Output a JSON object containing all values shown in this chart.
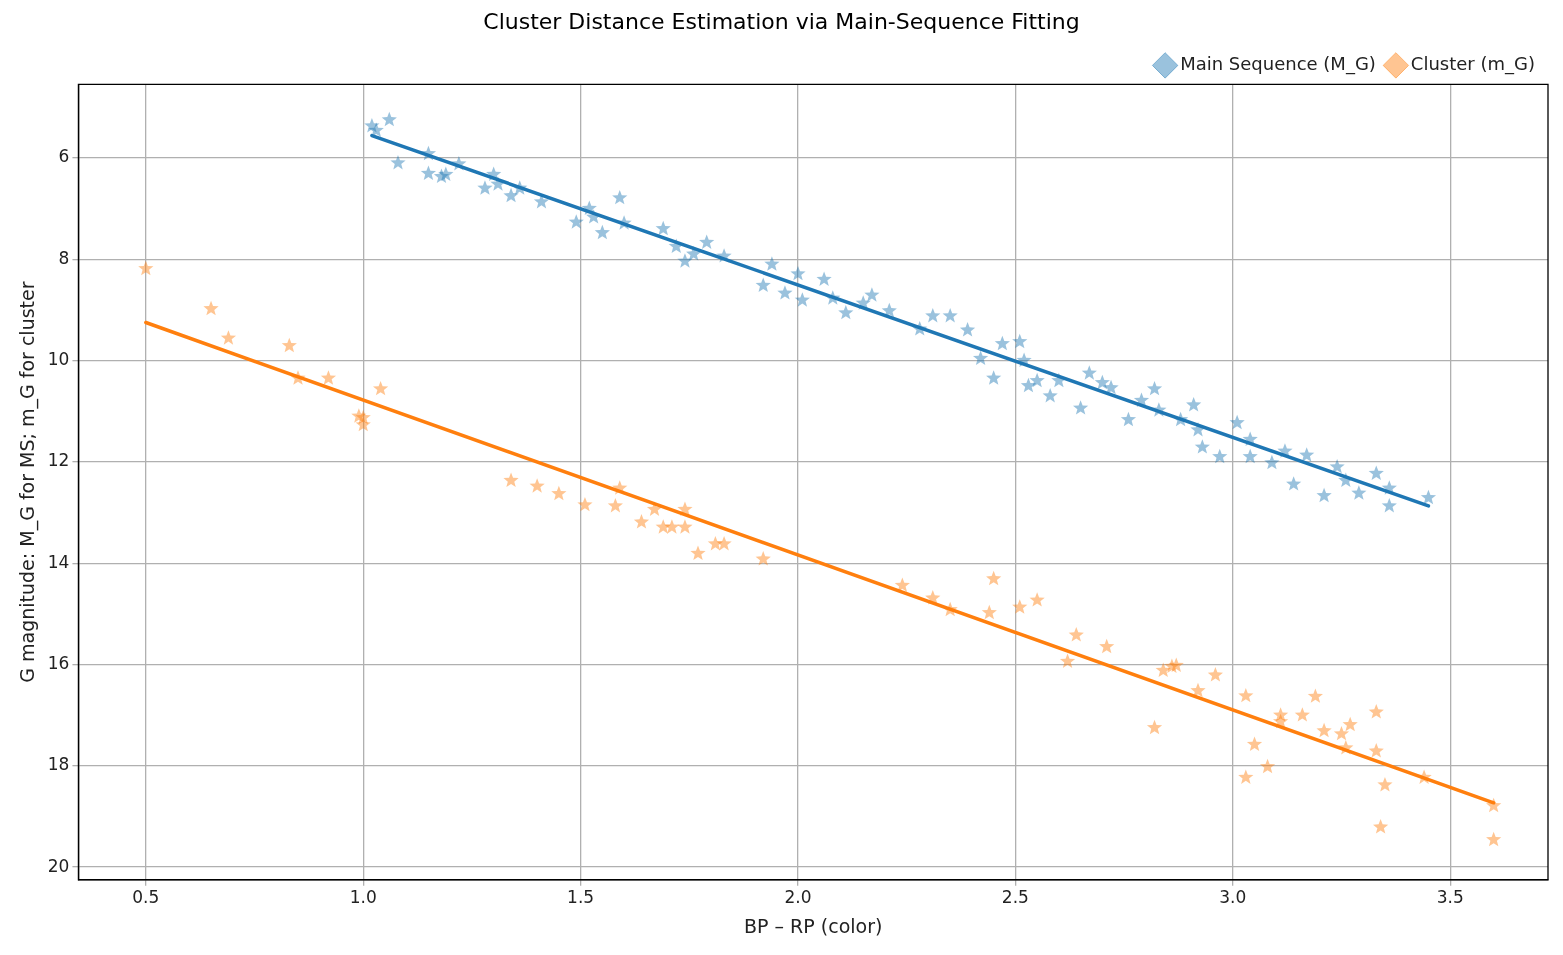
{
  "chart_data": {
    "type": "scatter",
    "title": "Cluster Distance Estimation via Main-Sequence Fitting",
    "xlabel": "BP – RP (color)",
    "ylabel": "G magnitude: M_G for MS; m_G for cluster",
    "xlim": [
      0.345,
      3.725
    ],
    "xticks": [
      0.5,
      {
        "value": 1,
        "label": "1.0"
      },
      1.5,
      {
        "value": 2,
        "label": "2.0"
      },
      2.5,
      {
        "value": 3,
        "label": "3.0"
      },
      3.5
    ],
    "ylim": [
      20.25,
      4.55
    ],
    "yticks": [
      6,
      8,
      10,
      12,
      14,
      16,
      18,
      20
    ],
    "grid": true,
    "legend": "top right",
    "marker": "star",
    "series": [
      {
        "name": "Main Sequence (M_G)",
        "color": "#1f77b4",
        "x": [
          1.03,
          1.06,
          1.02,
          1.08,
          1.15,
          1.15,
          1.18,
          1.19,
          1.22,
          1.28,
          1.3,
          1.31,
          1.34,
          1.36,
          1.41,
          1.49,
          1.52,
          1.53,
          1.55,
          1.59,
          1.6,
          1.69,
          1.72,
          1.74,
          1.76,
          1.79,
          1.83,
          1.92,
          1.94,
          1.97,
          2.0,
          2.01,
          2.06,
          2.08,
          2.11,
          2.15,
          2.17,
          2.21,
          2.28,
          2.31,
          2.35,
          2.39,
          2.42,
          2.45,
          2.47,
          2.51,
          2.52,
          2.53,
          2.55,
          2.58,
          2.6,
          2.65,
          2.67,
          2.7,
          2.72,
          2.76,
          2.79,
          2.82,
          2.83,
          2.88,
          2.91,
          2.92,
          2.93,
          2.97,
          3.01,
          3.04,
          3.04,
          3.09,
          3.12,
          3.14,
          3.17,
          3.21,
          3.24,
          3.26,
          3.29,
          3.33,
          3.36,
          3.36,
          3.45
        ],
        "values": [
          5.46,
          5.25,
          5.37,
          6.1,
          5.92,
          6.31,
          6.37,
          6.33,
          6.12,
          6.6,
          6.33,
          6.52,
          6.75,
          6.6,
          6.87,
          7.27,
          7.0,
          7.17,
          7.48,
          6.79,
          7.29,
          7.4,
          7.75,
          8.04,
          7.9,
          7.67,
          7.94,
          8.52,
          8.1,
          8.67,
          8.29,
          8.81,
          8.4,
          8.77,
          9.06,
          8.87,
          8.71,
          9.02,
          9.38,
          9.12,
          9.12,
          9.4,
          9.96,
          10.35,
          9.67,
          9.63,
          10.0,
          10.5,
          10.4,
          10.7,
          10.4,
          10.94,
          10.25,
          10.44,
          10.54,
          11.17,
          10.79,
          10.56,
          10.98,
          11.17,
          10.88,
          11.37,
          11.71,
          11.9,
          11.23,
          11.56,
          11.9,
          12.02,
          11.79,
          12.44,
          11.87,
          12.67,
          12.1,
          12.37,
          12.62,
          12.23,
          12.87,
          12.52,
          12.71
        ]
      },
      {
        "name": "Cluster (m_G)",
        "color": "#ff7f0e",
        "x": [
          0.5,
          0.65,
          0.69,
          0.83,
          0.85,
          0.92,
          0.99,
          1.0,
          1.0,
          1.04,
          1.34,
          1.4,
          1.45,
          1.51,
          1.58,
          1.59,
          1.64,
          1.67,
          1.69,
          1.71,
          1.74,
          1.74,
          1.77,
          1.81,
          1.83,
          1.92,
          2.24,
          2.31,
          2.35,
          2.45,
          2.44,
          2.51,
          2.55,
          2.62,
          2.64,
          2.71,
          2.82,
          2.84,
          2.86,
          2.87,
          2.92,
          2.96,
          3.03,
          3.03,
          3.05,
          3.08,
          3.11,
          3.11,
          3.16,
          3.19,
          3.21,
          3.25,
          3.26,
          3.27,
          3.33,
          3.33,
          3.34,
          3.35,
          3.44,
          3.6,
          3.6
        ],
        "values": [
          8.19,
          8.98,
          9.56,
          9.71,
          10.35,
          10.35,
          11.1,
          11.13,
          11.27,
          10.56,
          12.37,
          12.48,
          12.63,
          12.85,
          12.87,
          12.52,
          13.19,
          12.94,
          13.29,
          13.29,
          13.29,
          12.94,
          13.81,
          13.62,
          13.62,
          13.92,
          14.44,
          14.69,
          14.92,
          14.31,
          14.98,
          14.87,
          14.73,
          15.94,
          15.42,
          15.65,
          17.25,
          16.12,
          16.04,
          16.02,
          16.52,
          16.21,
          18.23,
          16.62,
          17.58,
          18.02,
          17.0,
          17.13,
          17.0,
          16.63,
          17.31,
          17.37,
          17.65,
          17.19,
          16.94,
          17.71,
          19.21,
          18.38,
          18.23,
          18.79,
          19.46
        ]
      },
      {
        "type": "line",
        "marker": "none",
        "color": "#1f77b4",
        "x": [
          1.02,
          3.45
        ],
        "values": [
          5.56,
          12.87
        ]
      },
      {
        "type": "line",
        "marker": "none",
        "color": "#ff7f0e",
        "x": [
          0.5,
          3.6
        ],
        "values": [
          9.25,
          18.73
        ]
      }
    ]
  }
}
